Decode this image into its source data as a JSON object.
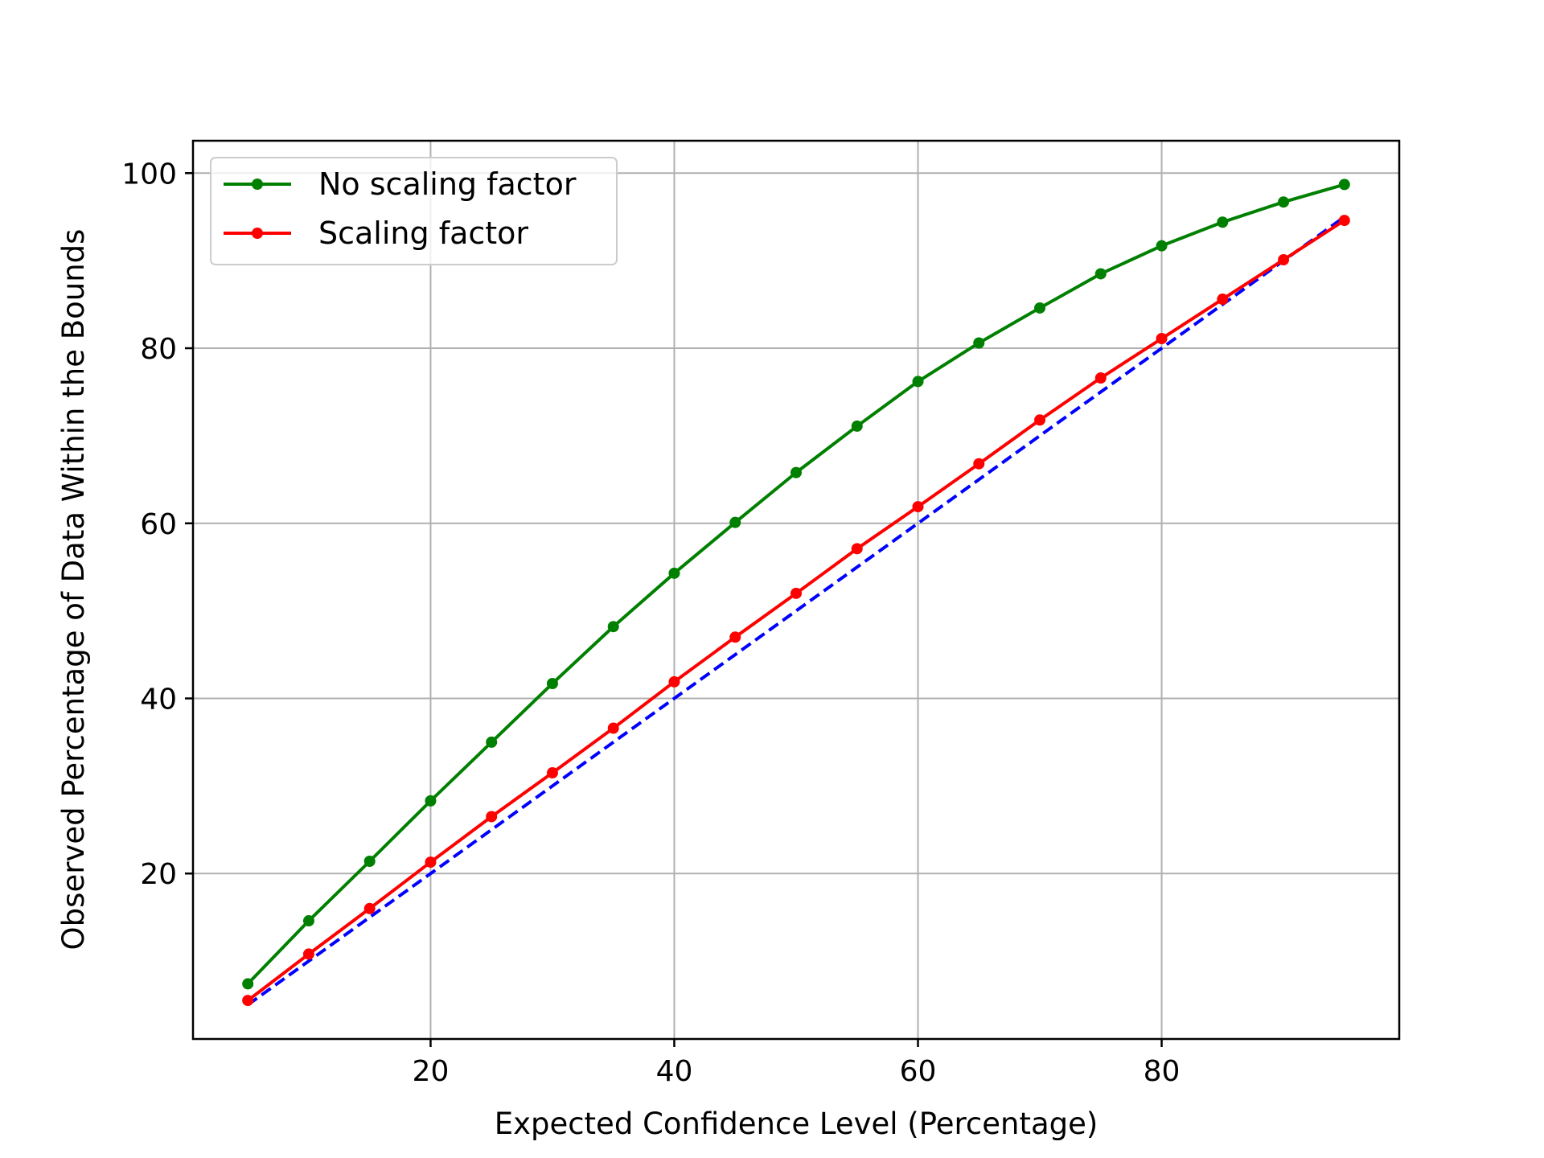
{
  "chart_data": {
    "type": "line",
    "title": "",
    "xlabel": "Expected Confidence Level (Percentage)",
    "ylabel": "Observed Percentage of Data Within the Bounds",
    "xlim": [
      0.5,
      99.5
    ],
    "ylim": [
      1.1,
      103.7
    ],
    "xticks": [
      20,
      40,
      60,
      80
    ],
    "yticks": [
      20,
      40,
      60,
      80,
      100
    ],
    "xtick_labels": [
      "20",
      "40",
      "60",
      "80"
    ],
    "ytick_labels": [
      "20",
      "40",
      "60",
      "80",
      "100"
    ],
    "grid": true,
    "legend_position": "upper-left",
    "x": [
      5,
      10,
      15,
      20,
      25,
      30,
      35,
      40,
      45,
      50,
      55,
      60,
      65,
      70,
      75,
      80,
      85,
      90,
      95
    ],
    "series": [
      {
        "name": "No scaling factor",
        "color": "#008000",
        "marker": "point",
        "values": [
          7.4,
          14.6,
          21.4,
          28.3,
          35.0,
          41.7,
          48.2,
          54.3,
          60.1,
          65.8,
          71.1,
          76.2,
          80.6,
          84.6,
          88.5,
          91.7,
          94.4,
          96.7,
          98.7
        ]
      },
      {
        "name": "Scaling factor",
        "color": "#ff0000",
        "marker": "point",
        "values": [
          5.5,
          10.8,
          16.0,
          21.3,
          26.5,
          31.5,
          36.6,
          41.9,
          47.0,
          52.0,
          57.1,
          61.9,
          66.8,
          71.8,
          76.6,
          81.1,
          85.6,
          90.1,
          94.6
        ]
      },
      {
        "color": "#0000ff",
        "style": "dashed",
        "x": [
          5,
          95
        ],
        "values": [
          5,
          95
        ]
      }
    ]
  }
}
